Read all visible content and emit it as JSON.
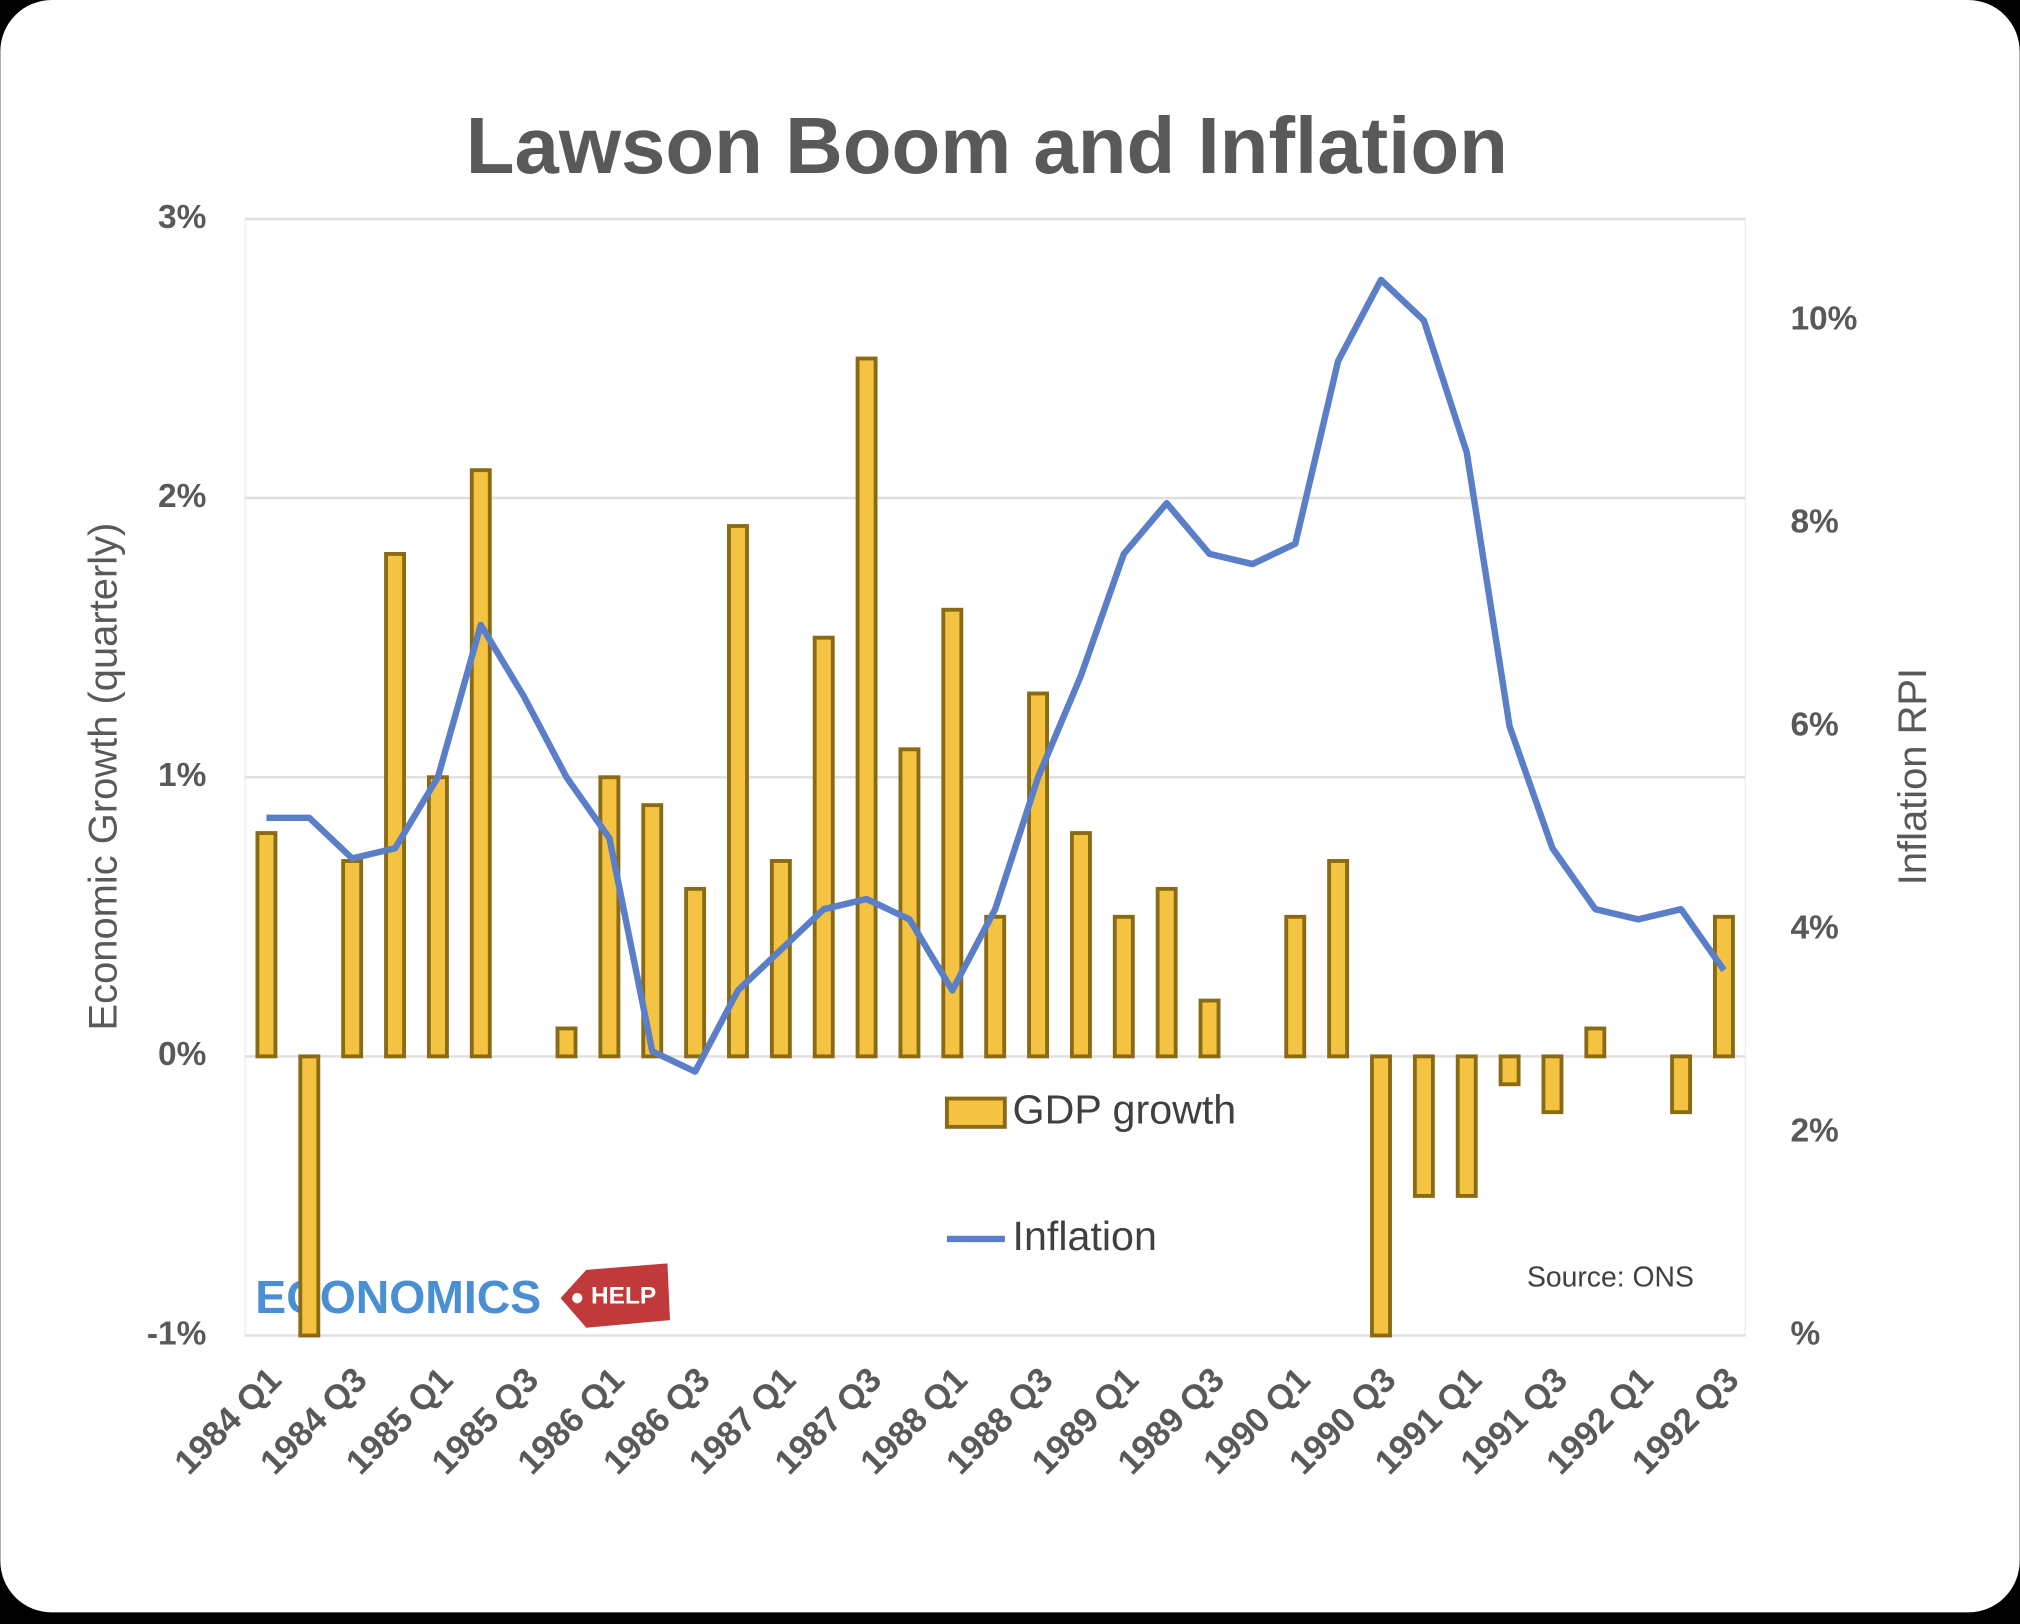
{
  "chart_data": {
    "type": "bar-line",
    "title": "Lawson Boom and Inflation",
    "y_label": "Economic Growth (quarterly)",
    "y2_label": "Inflation RPI",
    "annotation": "Source: ONS",
    "logo": {
      "main": "ECONOMICS",
      "tag": "HELP"
    },
    "categories": [
      "1984 Q1",
      null,
      "1984 Q3",
      null,
      "1985 Q1",
      null,
      "1985 Q3",
      null,
      "1986 Q1",
      null,
      "1986 Q3",
      null,
      "1987 Q1",
      null,
      "1987 Q3",
      null,
      "1988 Q1",
      null,
      "1988 Q3",
      null,
      "1989 Q1",
      null,
      "1989 Q3",
      null,
      "1990 Q1",
      null,
      "1990 Q3",
      null,
      "1991 Q1",
      null,
      "1991 Q3",
      null,
      "1992 Q1",
      null,
      "1992 Q3"
    ],
    "series": [
      {
        "name": "GDP growth",
        "type": "bar",
        "color": "#f5c342",
        "values": [
          0.8,
          -1.0,
          0.7,
          1.8,
          1.0,
          2.1,
          0,
          0.1,
          1.0,
          0.9,
          0.6,
          1.9,
          0.7,
          1.5,
          2.5,
          1.1,
          1.6,
          0.5,
          1.3,
          0.8,
          0.5,
          0.6,
          0.2,
          0,
          0.5,
          0.7,
          -1.0,
          -0.5,
          -0.5,
          -0.1,
          -0.2,
          0.1,
          0,
          -0.2,
          0.5
        ]
      },
      {
        "name": "Inflation",
        "type": "line",
        "axis": "y2",
        "color": "#5a7fc8",
        "values": [
          5.1,
          5.1,
          4.7,
          4.8,
          5.5,
          7.0,
          6.3,
          5.5,
          4.9,
          2.8,
          2.6,
          3.4,
          3.8,
          4.2,
          4.3,
          4.1,
          3.4,
          4.2,
          5.5,
          6.5,
          7.7,
          8.2,
          7.7,
          7.6,
          7.8,
          9.6,
          10.4,
          10.0,
          8.7,
          6.0,
          4.8,
          4.2,
          4.1,
          4.2,
          3.6
        ]
      }
    ],
    "ylim": [
      -1,
      3
    ],
    "yticks": [
      {
        "value": -1,
        "label": "-1%"
      },
      {
        "value": 0,
        "label": "0%"
      },
      {
        "value": 1,
        "label": "1%"
      },
      {
        "value": 2,
        "label": "2%"
      },
      {
        "value": 3,
        "label": "3%"
      }
    ],
    "y2lim": [
      0,
      11
    ],
    "y2ticks": [
      {
        "value": 0,
        "label": "%"
      },
      {
        "value": 2,
        "label": "2%"
      },
      {
        "value": 4,
        "label": "4%"
      },
      {
        "value": 6,
        "label": "6%"
      },
      {
        "value": 8,
        "label": "8%"
      },
      {
        "value": 10,
        "label": "10%"
      }
    ],
    "grid": true
  }
}
